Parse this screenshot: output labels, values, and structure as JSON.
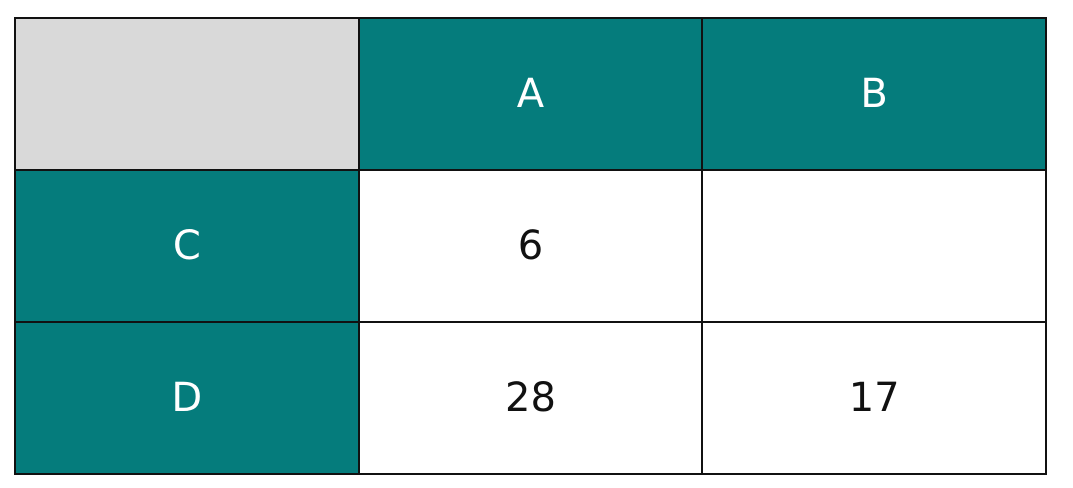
{
  "table": {
    "column_headers": [
      "A",
      "B"
    ],
    "rows": [
      {
        "label": "C",
        "cells": [
          "6",
          ""
        ]
      },
      {
        "label": "D",
        "cells": [
          "28",
          "17"
        ]
      }
    ]
  },
  "colors": {
    "header_fill": "#057c7c",
    "corner_fill": "#d9d9d9",
    "cell_fill": "#ffffff",
    "border": "#111111"
  }
}
